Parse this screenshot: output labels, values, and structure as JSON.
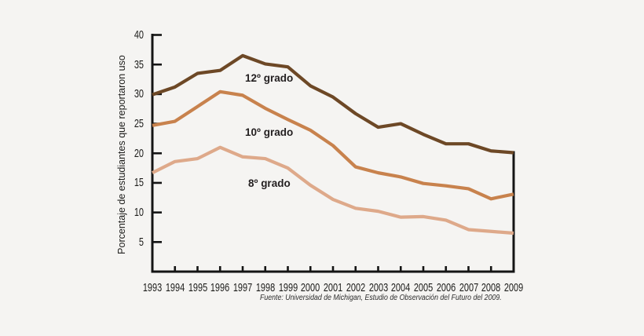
{
  "figure": {
    "background": "#f5f4f2",
    "source_note": "Fuente: Universidad de Michigan, Estudio de Observación del Futuro del 2009."
  },
  "chart_data": {
    "type": "line",
    "title": "",
    "xlabel": "",
    "ylabel": "Porcentaje de estudiantes que reportaron uso",
    "ylim": [
      0,
      40
    ],
    "yticks": [
      5,
      10,
      15,
      20,
      25,
      30,
      35,
      40
    ],
    "x": [
      1993,
      1994,
      1995,
      1996,
      1997,
      1998,
      1999,
      2000,
      2001,
      2002,
      2003,
      2004,
      2005,
      2006,
      2007,
      2008,
      2009
    ],
    "grid": false,
    "legend_position": "inline-labels-on-plot",
    "axis_color": "#141414",
    "text_color": "#1c1c1a",
    "series": [
      {
        "name": "12º grado",
        "color": "#6d4826",
        "values": [
          29.9,
          31.2,
          33.5,
          34.0,
          36.5,
          35.1,
          34.6,
          31.4,
          29.5,
          26.7,
          24.4,
          25.0,
          23.2,
          21.6,
          21.6,
          20.4,
          20.1
        ]
      },
      {
        "name": "10º grado",
        "color": "#c8824d",
        "values": [
          24.7,
          25.4,
          27.9,
          30.4,
          29.8,
          27.6,
          25.7,
          23.9,
          21.3,
          17.7,
          16.7,
          16.0,
          14.9,
          14.5,
          14.0,
          12.3,
          13.1
        ]
      },
      {
        "name": "8º grado",
        "color": "#dea98a",
        "values": [
          16.7,
          18.6,
          19.1,
          21.0,
          19.4,
          19.1,
          17.5,
          14.6,
          12.2,
          10.7,
          10.2,
          9.2,
          9.3,
          8.7,
          7.1,
          6.8,
          6.5
        ]
      }
    ]
  }
}
